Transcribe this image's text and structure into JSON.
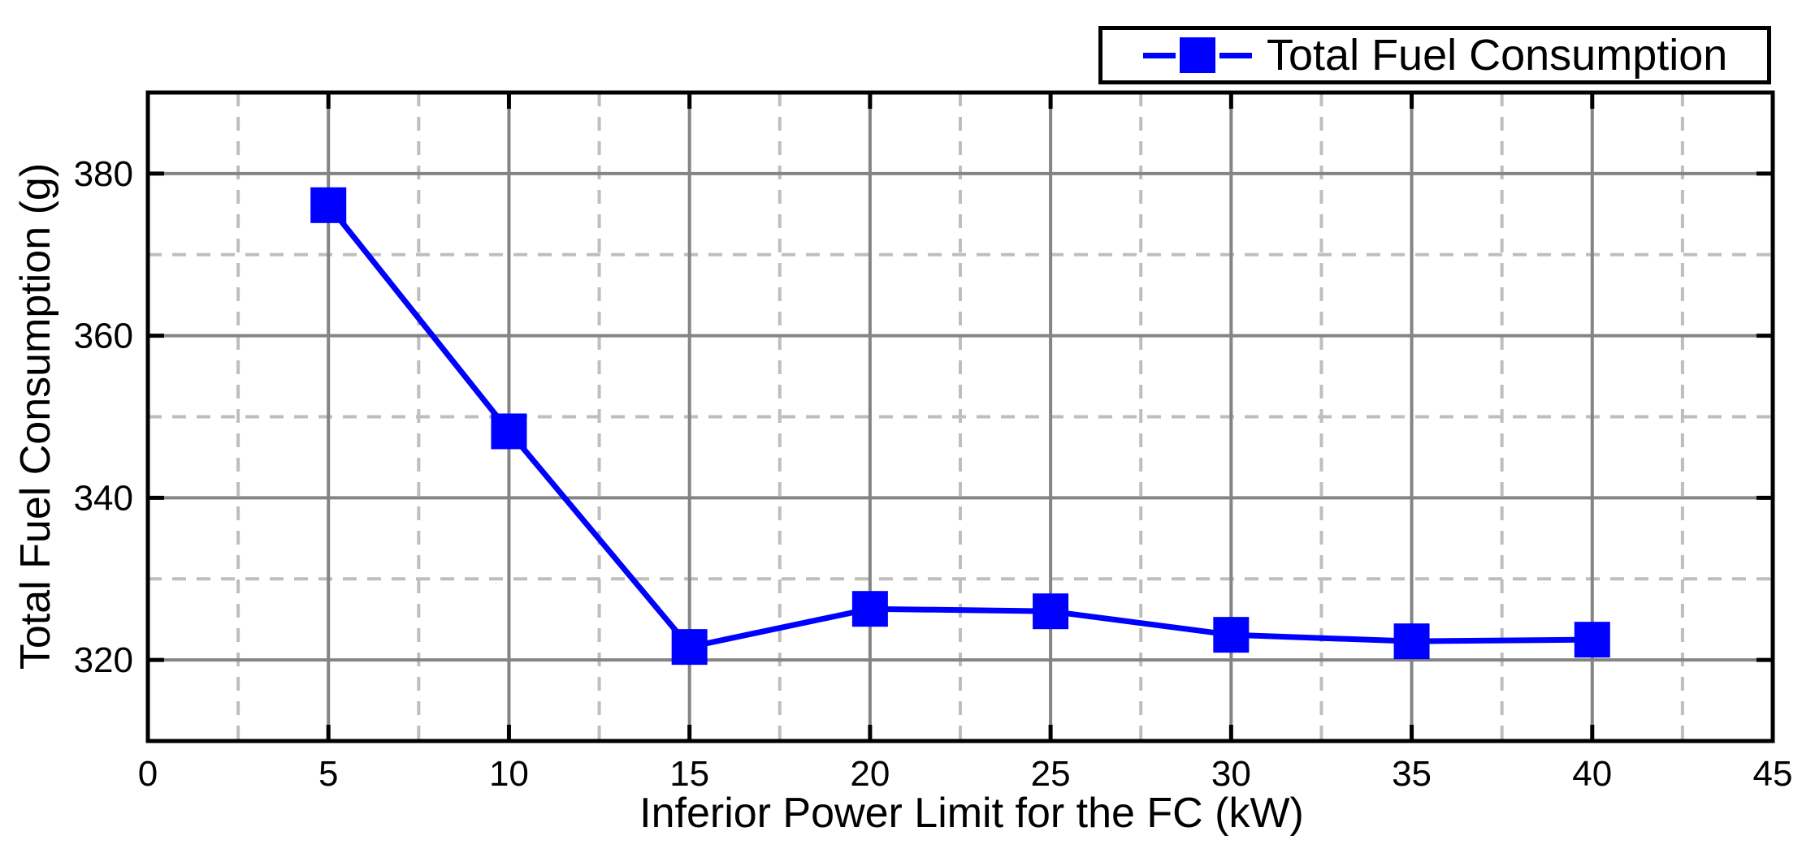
{
  "chart_data": {
    "type": "line",
    "title": "",
    "series": [
      {
        "name": "Total Fuel Consumption",
        "color": "#0000FF",
        "marker": "square",
        "marker_size": 44,
        "line_width": 7,
        "x": [
          5,
          10,
          15,
          20,
          25,
          30,
          35,
          40
        ],
        "y": [
          376.1,
          348.2,
          321.6,
          326.3,
          326.0,
          323.1,
          322.3,
          322.5
        ]
      }
    ],
    "xlabel": "Inferior Power Limit for the FC (kW)",
    "ylabel": "Total Fuel Consumption (g)",
    "xlim": [
      0,
      45
    ],
    "ylim": [
      310,
      390
    ],
    "xticks": [
      0,
      5,
      10,
      15,
      20,
      25,
      30,
      35,
      40,
      45
    ],
    "yticks": [
      320,
      340,
      360,
      380
    ],
    "x_minor_step": 2.5,
    "y_minor_step": 10,
    "grid": {
      "major": true,
      "minor": true,
      "minor_dashed": true
    },
    "legend": {
      "label": "Total Fuel Consumption",
      "position": "top-right"
    }
  },
  "colors": {
    "series_blue": "#0000FF",
    "major_grid": "#848484",
    "minor_grid": "#BEBEBE",
    "axis": "#000000",
    "background": "#FFFFFF"
  }
}
